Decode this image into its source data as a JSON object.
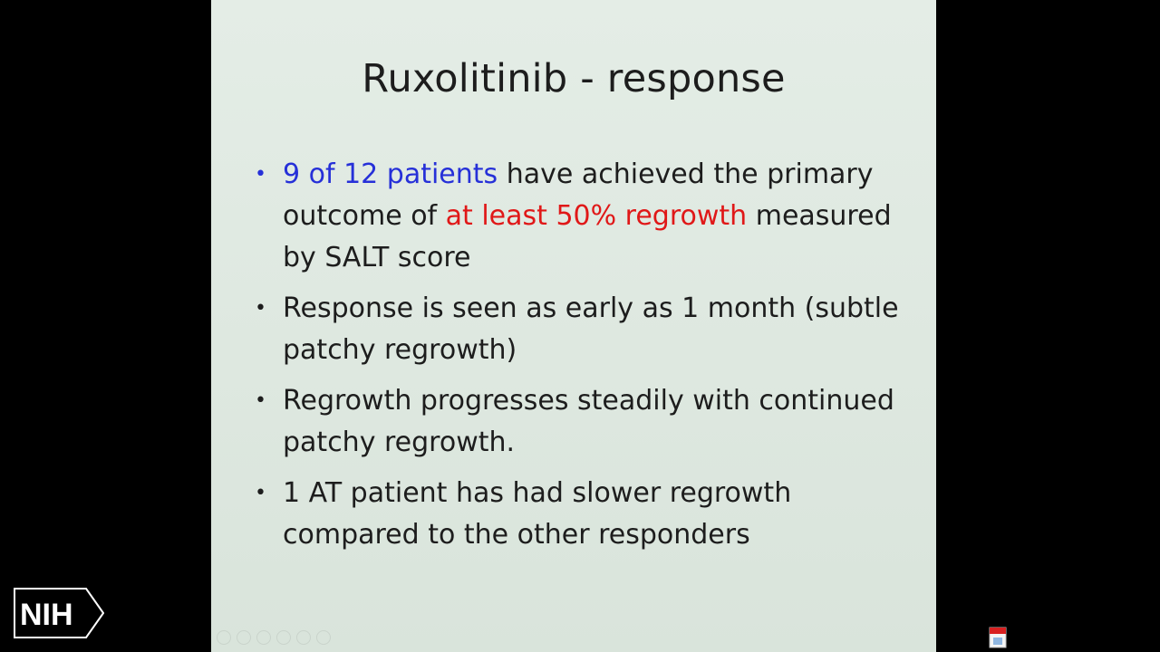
{
  "slide": {
    "title": "Ruxolitinib - response",
    "bullets": [
      {
        "segments": [
          {
            "text": "9 of 12 patients",
            "color": "blue"
          },
          {
            "text": " have achieved the primary outcome of ",
            "color": "default"
          },
          {
            "text": "at least 50% regrowth",
            "color": "red"
          },
          {
            "text": " measured by SALT score",
            "color": "default"
          }
        ]
      },
      {
        "segments": [
          {
            "text": "Response is seen as early as 1 month (subtle patchy regrowth)",
            "color": "default"
          }
        ]
      },
      {
        "segments": [
          {
            "text": "Regrowth progresses steadily with continued patchy regrowth.",
            "color": "default"
          }
        ]
      },
      {
        "segments": [
          {
            "text": "1 AT patient has had slower regrowth compared to the other responders",
            "color": "default"
          }
        ]
      }
    ],
    "colors": {
      "blue": "#2630d8",
      "red": "#e01818",
      "text": "#1d1d1d",
      "background": "#e2ebe4"
    }
  },
  "logo": {
    "text": "NIH",
    "icon": "nih-chevron-logo"
  },
  "toolbar": {
    "icons": [
      "prev-icon",
      "next-icon",
      "pen-icon",
      "slides-icon",
      "zoom-icon",
      "more-icon"
    ]
  },
  "system_icon": "app-tray-icon"
}
